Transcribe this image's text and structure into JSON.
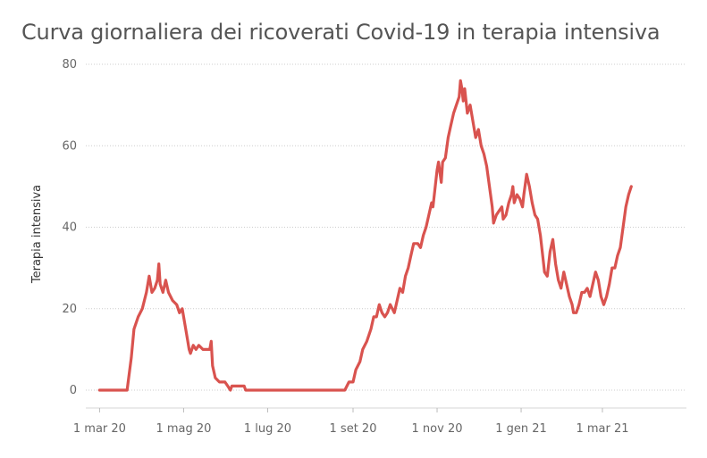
{
  "chart_data": {
    "type": "line",
    "title": "Curva giornaliera dei ricoverati Covid-19 in terapia intensiva",
    "xlabel": "",
    "ylabel": "Terapia intensiva",
    "ylim": [
      0,
      80
    ],
    "yticks": [
      "0",
      "20",
      "40",
      "60",
      "80"
    ],
    "xlim": [
      "2020-02-20",
      "2021-05-01"
    ],
    "xticks": [
      {
        "date": "2020-03-01",
        "label": "1 mar 20"
      },
      {
        "date": "2020-05-01",
        "label": "1 mag 20"
      },
      {
        "date": "2020-07-01",
        "label": "1 lug 20"
      },
      {
        "date": "2020-09-01",
        "label": "1 set 20"
      },
      {
        "date": "2020-11-01",
        "label": "1 nov 20"
      },
      {
        "date": "2021-01-01",
        "label": "1 gen 21"
      },
      {
        "date": "2021-03-01",
        "label": "1 mar 21"
      }
    ],
    "grid": true,
    "series": [
      {
        "color": "#d9534f",
        "points": [
          [
            "2020-03-01",
            0
          ],
          [
            "2020-03-10",
            0
          ],
          [
            "2020-03-20",
            0
          ],
          [
            "2020-03-21",
            0
          ],
          [
            "2020-03-24",
            8
          ],
          [
            "2020-03-26",
            15
          ],
          [
            "2020-03-29",
            18
          ],
          [
            "2020-04-01",
            20
          ],
          [
            "2020-04-04",
            24
          ],
          [
            "2020-04-06",
            28
          ],
          [
            "2020-04-08",
            24
          ],
          [
            "2020-04-10",
            25
          ],
          [
            "2020-04-12",
            27
          ],
          [
            "2020-04-13",
            31
          ],
          [
            "2020-04-14",
            26
          ],
          [
            "2020-04-16",
            24
          ],
          [
            "2020-04-18",
            27
          ],
          [
            "2020-04-20",
            24
          ],
          [
            "2020-04-23",
            22
          ],
          [
            "2020-04-26",
            21
          ],
          [
            "2020-04-28",
            19
          ],
          [
            "2020-04-30",
            20
          ],
          [
            "2020-05-02",
            16
          ],
          [
            "2020-05-04",
            12
          ],
          [
            "2020-05-05",
            10
          ],
          [
            "2020-05-06",
            9
          ],
          [
            "2020-05-08",
            11
          ],
          [
            "2020-05-10",
            10
          ],
          [
            "2020-05-12",
            11
          ],
          [
            "2020-05-15",
            10
          ],
          [
            "2020-05-18",
            10
          ],
          [
            "2020-05-20",
            10
          ],
          [
            "2020-05-21",
            12
          ],
          [
            "2020-05-22",
            6
          ],
          [
            "2020-05-24",
            3
          ],
          [
            "2020-05-27",
            2
          ],
          [
            "2020-05-31",
            2
          ],
          [
            "2020-06-02",
            1
          ],
          [
            "2020-06-04",
            0
          ],
          [
            "2020-06-05",
            1
          ],
          [
            "2020-06-10",
            1
          ],
          [
            "2020-06-14",
            1
          ],
          [
            "2020-06-15",
            0
          ],
          [
            "2020-07-01",
            0
          ],
          [
            "2020-08-01",
            0
          ],
          [
            "2020-08-20",
            0
          ],
          [
            "2020-08-26",
            0
          ],
          [
            "2020-08-29",
            2
          ],
          [
            "2020-09-01",
            2
          ],
          [
            "2020-09-03",
            5
          ],
          [
            "2020-09-06",
            7
          ],
          [
            "2020-09-08",
            10
          ],
          [
            "2020-09-11",
            12
          ],
          [
            "2020-09-14",
            15
          ],
          [
            "2020-09-16",
            18
          ],
          [
            "2020-09-18",
            18
          ],
          [
            "2020-09-20",
            21
          ],
          [
            "2020-09-22",
            19
          ],
          [
            "2020-09-24",
            18
          ],
          [
            "2020-09-26",
            19
          ],
          [
            "2020-09-28",
            21
          ],
          [
            "2020-10-01",
            19
          ],
          [
            "2020-10-03",
            22
          ],
          [
            "2020-10-05",
            25
          ],
          [
            "2020-10-07",
            24
          ],
          [
            "2020-10-09",
            28
          ],
          [
            "2020-10-11",
            30
          ],
          [
            "2020-10-13",
            33
          ],
          [
            "2020-10-15",
            36
          ],
          [
            "2020-10-18",
            36
          ],
          [
            "2020-10-20",
            35
          ],
          [
            "2020-10-22",
            38
          ],
          [
            "2020-10-24",
            40
          ],
          [
            "2020-10-26",
            43
          ],
          [
            "2020-10-28",
            46
          ],
          [
            "2020-10-29",
            45
          ],
          [
            "2020-11-01",
            54
          ],
          [
            "2020-11-02",
            56
          ],
          [
            "2020-11-04",
            51
          ],
          [
            "2020-11-05",
            56
          ],
          [
            "2020-11-07",
            57
          ],
          [
            "2020-11-09",
            62
          ],
          [
            "2020-11-11",
            65
          ],
          [
            "2020-11-13",
            68
          ],
          [
            "2020-11-15",
            70
          ],
          [
            "2020-11-17",
            72
          ],
          [
            "2020-11-18",
            76
          ],
          [
            "2020-11-19",
            74
          ],
          [
            "2020-11-20",
            71
          ],
          [
            "2020-11-21",
            74
          ],
          [
            "2020-11-23",
            68
          ],
          [
            "2020-11-25",
            70
          ],
          [
            "2020-11-27",
            66
          ],
          [
            "2020-11-29",
            62
          ],
          [
            "2020-12-01",
            64
          ],
          [
            "2020-12-03",
            60
          ],
          [
            "2020-12-05",
            58
          ],
          [
            "2020-12-07",
            55
          ],
          [
            "2020-12-09",
            50
          ],
          [
            "2020-12-11",
            45
          ],
          [
            "2020-12-12",
            41
          ],
          [
            "2020-12-14",
            43
          ],
          [
            "2020-12-16",
            44
          ],
          [
            "2020-12-18",
            45
          ],
          [
            "2020-12-19",
            42
          ],
          [
            "2020-12-21",
            43
          ],
          [
            "2020-12-23",
            46
          ],
          [
            "2020-12-25",
            48
          ],
          [
            "2020-12-26",
            50
          ],
          [
            "2020-12-27",
            46
          ],
          [
            "2020-12-29",
            48
          ],
          [
            "2020-12-31",
            47
          ],
          [
            "2021-01-02",
            45
          ],
          [
            "2021-01-03",
            48
          ],
          [
            "2021-01-05",
            53
          ],
          [
            "2021-01-07",
            50
          ],
          [
            "2021-01-09",
            46
          ],
          [
            "2021-01-11",
            43
          ],
          [
            "2021-01-13",
            42
          ],
          [
            "2021-01-15",
            38
          ],
          [
            "2021-01-17",
            32
          ],
          [
            "2021-01-18",
            29
          ],
          [
            "2021-01-20",
            28
          ],
          [
            "2021-01-22",
            34
          ],
          [
            "2021-01-24",
            37
          ],
          [
            "2021-01-26",
            31
          ],
          [
            "2021-01-28",
            27
          ],
          [
            "2021-01-30",
            25
          ],
          [
            "2021-02-01",
            29
          ],
          [
            "2021-02-03",
            26
          ],
          [
            "2021-02-05",
            23
          ],
          [
            "2021-02-07",
            21
          ],
          [
            "2021-02-08",
            19
          ],
          [
            "2021-02-10",
            19
          ],
          [
            "2021-02-12",
            21
          ],
          [
            "2021-02-14",
            24
          ],
          [
            "2021-02-16",
            24
          ],
          [
            "2021-02-18",
            25
          ],
          [
            "2021-02-20",
            23
          ],
          [
            "2021-02-22",
            26
          ],
          [
            "2021-02-24",
            29
          ],
          [
            "2021-02-26",
            27
          ],
          [
            "2021-02-28",
            23
          ],
          [
            "2021-03-02",
            21
          ],
          [
            "2021-03-04",
            23
          ],
          [
            "2021-03-06",
            26
          ],
          [
            "2021-03-08",
            30
          ],
          [
            "2021-03-10",
            30
          ],
          [
            "2021-03-12",
            33
          ],
          [
            "2021-03-14",
            35
          ],
          [
            "2021-03-16",
            40
          ],
          [
            "2021-03-18",
            45
          ],
          [
            "2021-03-20",
            48
          ],
          [
            "2021-03-22",
            50
          ]
        ]
      }
    ]
  }
}
